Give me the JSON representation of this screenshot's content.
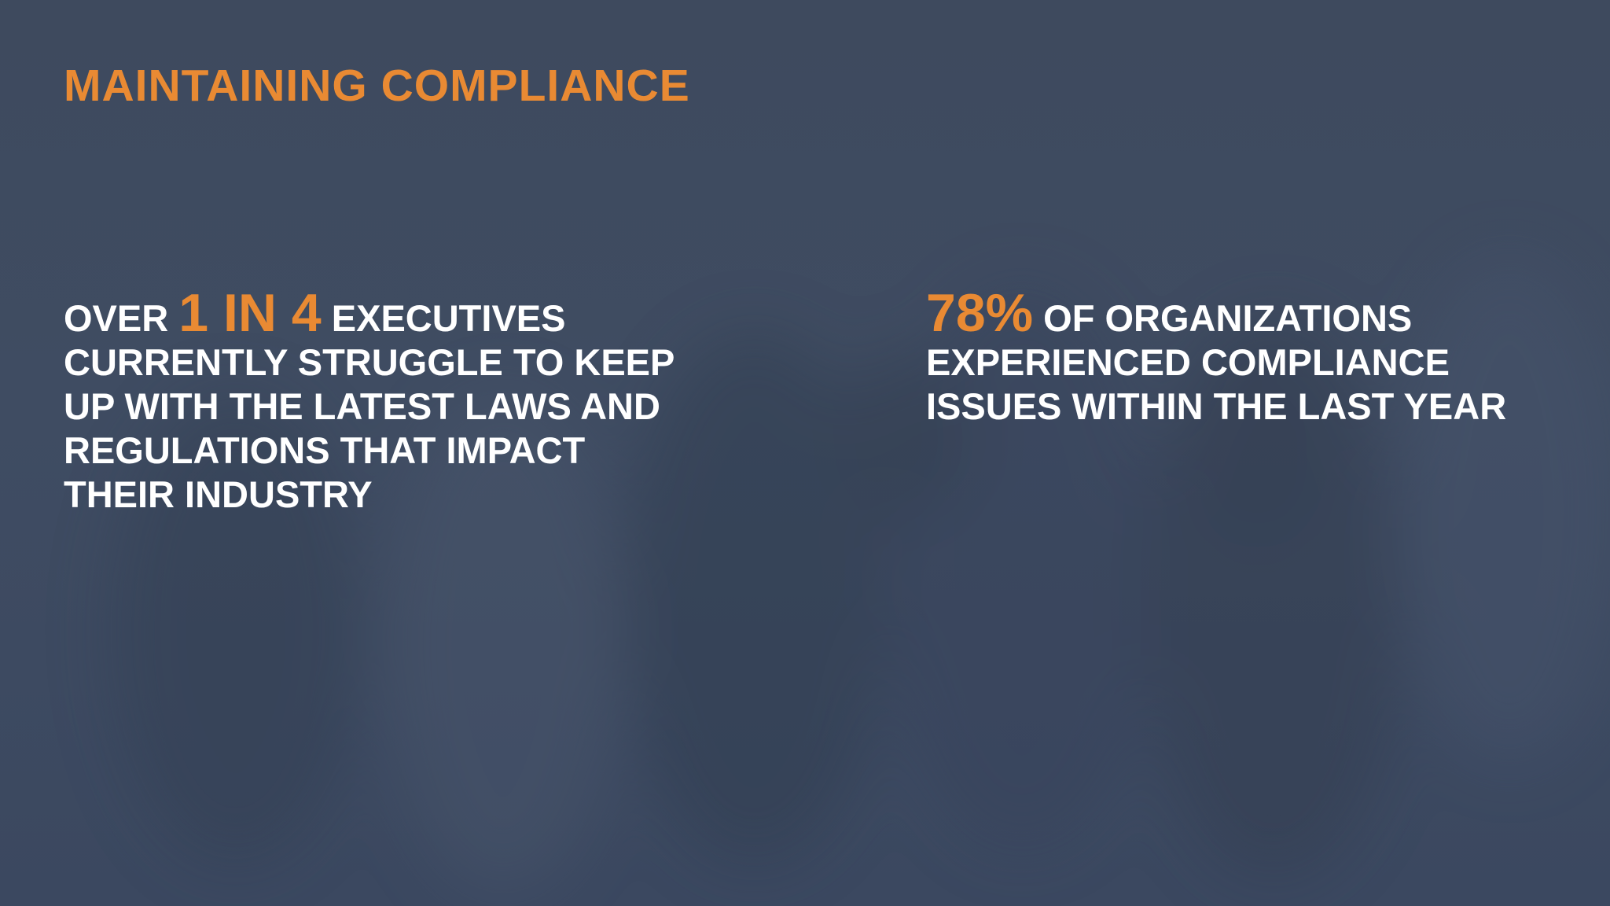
{
  "title": "MAINTAINING COMPLIANCE",
  "stats": [
    {
      "prefix": "OVER",
      "figure": "1 IN 4",
      "lines": [
        "EXECUTIVES",
        "CURRENTLY STRUGGLE TO KEEP",
        "UP WITH THE LATEST LAWS AND",
        "REGULATIONS THAT IMPACT",
        "THEIR INDUSTRY"
      ]
    },
    {
      "figure": "78%",
      "lines": [
        "OF ORGANIZATIONS",
        "EXPERIENCED COMPLIANCE",
        "ISSUES WITHIN THE LAST YEAR"
      ]
    }
  ]
}
